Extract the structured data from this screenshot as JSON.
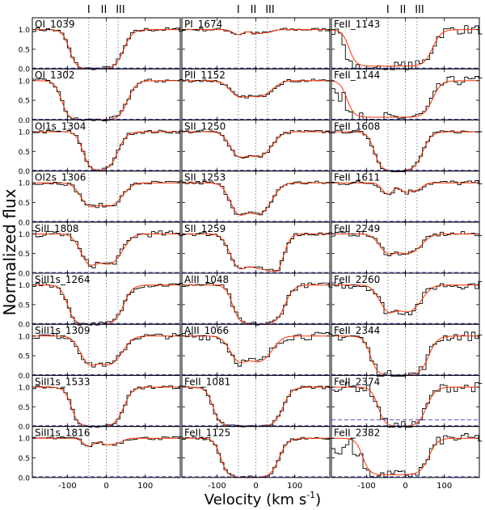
{
  "figure": {
    "xlabel": "Velocity (km s",
    "xlabel_sup": "-1",
    "xlabel_close": ")",
    "ylabel": "Normalized flux",
    "component_labels": [
      "I",
      "II",
      "III"
    ],
    "colors": {
      "data": "#000000",
      "model": "#ff3300",
      "marker": "#888888",
      "zero": "#3333cc"
    }
  },
  "chart_data": {
    "type": "line",
    "xlim": [
      -190,
      190
    ],
    "ylim": [
      0,
      1.3
    ],
    "xticks": [
      -100,
      0,
      100
    ],
    "yticks": [
      0.0,
      0.5,
      1.0
    ],
    "components_kms": [
      -45,
      0,
      30
    ],
    "series_names": [
      "data",
      "model"
    ],
    "panels": [
      {
        "label": "OI_1039",
        "kind": "sat",
        "depth": 1.0,
        "left": -95,
        "right": 45,
        "noise": 0.05
      },
      {
        "label": "PI_1674",
        "kind": "weak",
        "depth": 0.15,
        "noise": 0.04
      },
      {
        "label": "FeII_1143",
        "kind": "sat",
        "depth": 1.0,
        "left": -145,
        "right": 70,
        "noise": 0.12,
        "uncon": true
      },
      {
        "label": "OI_1302",
        "kind": "sat",
        "depth": 1.0,
        "left": -115,
        "right": 55,
        "noise": 0.05
      },
      {
        "label": "PII_1152",
        "kind": "mid",
        "depth": 0.45,
        "noise": 0.04
      },
      {
        "label": "FeII_1144",
        "kind": "sat",
        "depth": 1.0,
        "left": -150,
        "right": 70,
        "noise": 0.12,
        "uncon": true
      },
      {
        "label": "OI1s_1304",
        "kind": "sat",
        "depth": 1.0,
        "left": -60,
        "right": 30,
        "noise": 0.04,
        "blend_left": true
      },
      {
        "label": "SII_1250",
        "kind": "mid",
        "depth": 0.7,
        "noise": 0.04
      },
      {
        "label": "FeII_1608",
        "kind": "sat",
        "depth": 1.0,
        "left": -80,
        "right": 45,
        "noise": 0.04
      },
      {
        "label": "OI2s_1306",
        "kind": "mid",
        "depth": 0.65,
        "noise": 0.05
      },
      {
        "label": "SII_1253",
        "kind": "mid",
        "depth": 0.88,
        "noise": 0.05
      },
      {
        "label": "FeII_1611",
        "kind": "weak",
        "depth": 0.35,
        "noise": 0.06
      },
      {
        "label": "SiII_1808",
        "kind": "mid",
        "depth": 0.85,
        "noise": 0.08
      },
      {
        "label": "SII_1259",
        "kind": "mid",
        "depth": 0.95,
        "noise": 0.05,
        "blend_right": true
      },
      {
        "label": "FeII_2249",
        "kind": "mid",
        "depth": 0.55,
        "noise": 0.06
      },
      {
        "label": "SiII1s_1264",
        "kind": "sat",
        "depth": 1.0,
        "left": -100,
        "right": 45,
        "noise": 0.06
      },
      {
        "label": "AlII_1048",
        "kind": "sat",
        "depth": 1.0,
        "left": -60,
        "right": 75,
        "noise": 0.06,
        "blend_left": true
      },
      {
        "label": "FeII_2260",
        "kind": "mid",
        "depth": 0.75,
        "noise": 0.1
      },
      {
        "label": "SiII1s_1309",
        "kind": "mid",
        "depth": 0.8,
        "noise": 0.07
      },
      {
        "label": "AlII_1066",
        "kind": "mid",
        "depth": 0.72,
        "noise": 0.1
      },
      {
        "label": "FeII_2344",
        "kind": "sat",
        "depth": 1.0,
        "left": -90,
        "right": 60,
        "noise": 0.12
      },
      {
        "label": "SiII1s_1533",
        "kind": "sat",
        "depth": 1.0,
        "left": -90,
        "right": 45,
        "noise": 0.04
      },
      {
        "label": "FeII_1081",
        "kind": "sat",
        "depth": 1.0,
        "left": -110,
        "right": 70,
        "noise": 0.04
      },
      {
        "label": "FeII_2374",
        "kind": "sat",
        "depth": 1.0,
        "left": -70,
        "right": 55,
        "noise": 0.12,
        "dash": 0.17
      },
      {
        "label": "SiII1s_1816",
        "kind": "weak",
        "depth": 0.25,
        "noise": 0.04
      },
      {
        "label": "FeII_1125",
        "kind": "sat",
        "depth": 1.0,
        "left": -90,
        "right": 60,
        "noise": 0.04
      },
      {
        "label": "FeII_2382",
        "kind": "sat",
        "depth": 1.0,
        "left": -110,
        "right": 60,
        "noise": 0.12,
        "uncon": true
      }
    ]
  }
}
